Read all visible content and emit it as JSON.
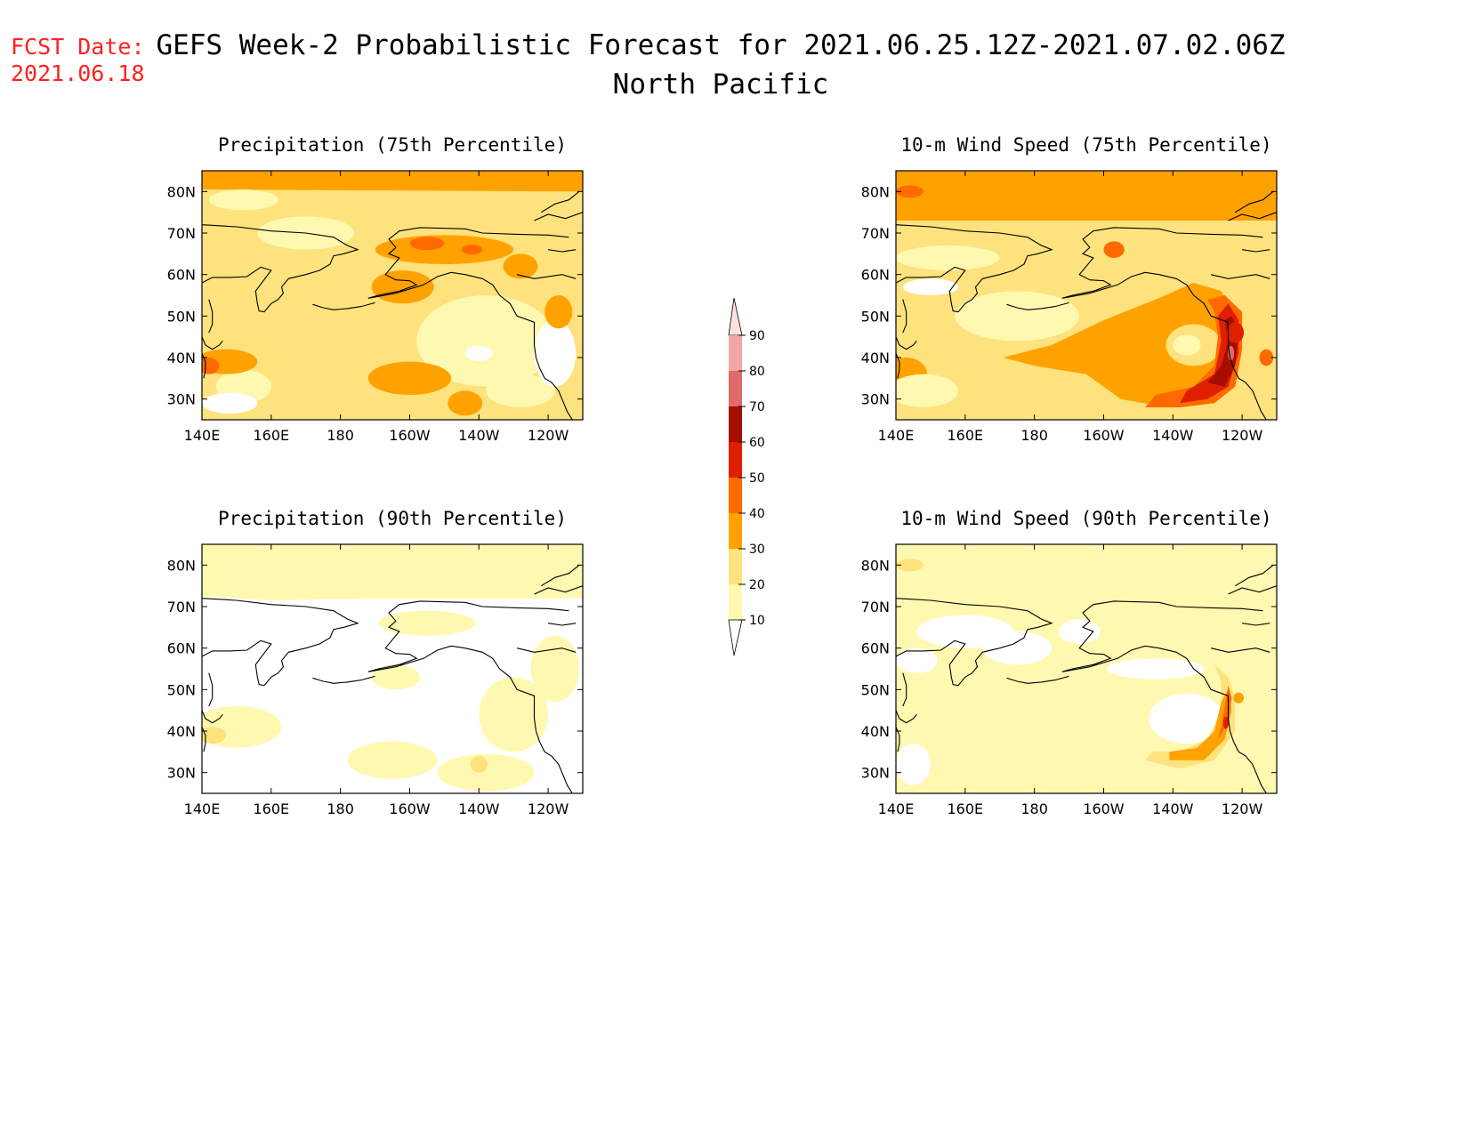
{
  "header": {
    "fcst_label": "FCST Date:",
    "fcst_date": "2021.06.18",
    "title": "GEFS Week-2 Probabilistic Forecast for 2021.06.25.12Z-2021.07.02.06Z",
    "subtitle": "North Pacific"
  },
  "axes": {
    "lon_ticks": [
      "140E",
      "160E",
      "180",
      "160W",
      "140W",
      "120W"
    ],
    "lat_ticks": [
      "80N",
      "70N",
      "60N",
      "50N",
      "40N",
      "30N"
    ]
  },
  "panels": [
    {
      "id": "precip75",
      "title": "Precipitation (75th Percentile)"
    },
    {
      "id": "wind75",
      "title": "10-m Wind Speed (75th Percentile)"
    },
    {
      "id": "precip90",
      "title": "Precipitation (90th Percentile)"
    },
    {
      "id": "wind90",
      "title": "10-m Wind Speed (90th Percentile)"
    }
  ],
  "legend": {
    "levels": [
      "90",
      "80",
      "70",
      "60",
      "50",
      "40",
      "30",
      "20",
      "10"
    ],
    "colors": [
      "#fde0e0",
      "#f4a6a6",
      "#df6a6a",
      "#a50d00",
      "#e01f00",
      "#ff6a00",
      "#ffa200",
      "#fde27e",
      "#fff8b0"
    ]
  },
  "colors": {
    "lightest": "#fff8b0",
    "light": "#fde27e",
    "orange": "#ffa200",
    "dark_orange": "#ff6a00",
    "red": "#e01f00",
    "dark_red": "#a50d00",
    "fcst_text": "#ff2020"
  }
}
